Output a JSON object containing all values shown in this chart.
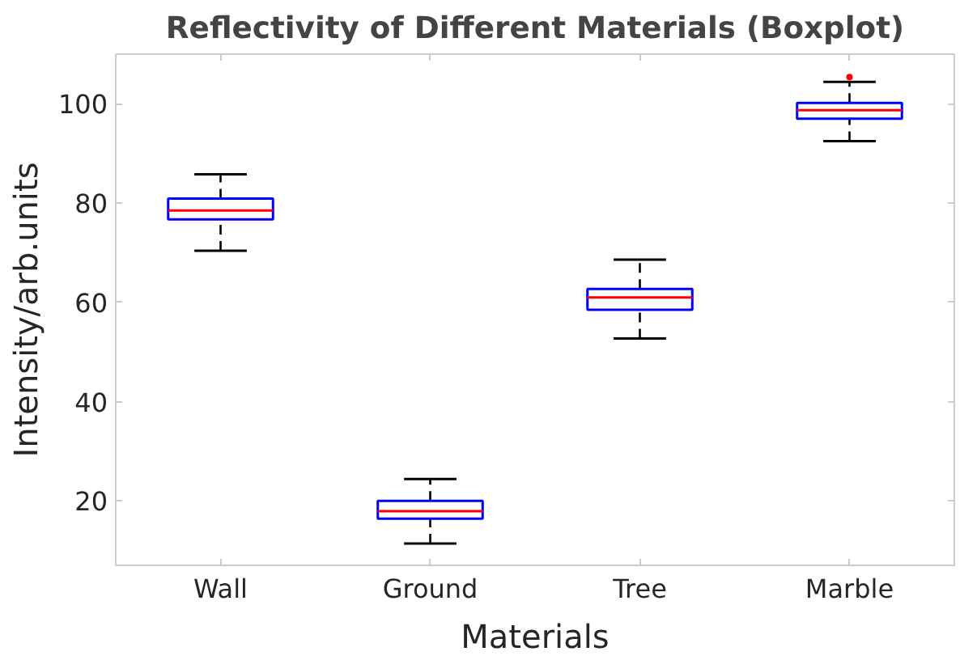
{
  "chart_data": {
    "type": "box",
    "title": "Reflectivity of Different Materials (Boxplot)",
    "xlabel": "Materials",
    "ylabel": "Intensity/arb.units",
    "categories": [
      "Wall",
      "Ground",
      "Tree",
      "Marble"
    ],
    "boxes": [
      {
        "low": 70.4,
        "q1": 76.7,
        "median": 78.5,
        "q3": 80.9,
        "high": 85.8
      },
      {
        "low": 11.4,
        "q1": 16.4,
        "median": 17.9,
        "q3": 20.0,
        "high": 24.4
      },
      {
        "low": 52.7,
        "q1": 58.5,
        "median": 61.0,
        "q3": 62.7,
        "high": 68.6
      },
      {
        "low": 92.5,
        "q1": 97.0,
        "median": 98.7,
        "q3": 100.2,
        "high": 104.4,
        "outliers": [
          105.4
        ]
      }
    ],
    "color": "#0000ff",
    "ylim": [
      7,
      110
    ],
    "yticks": [
      20,
      40,
      60,
      80,
      100
    ],
    "grid": false
  }
}
